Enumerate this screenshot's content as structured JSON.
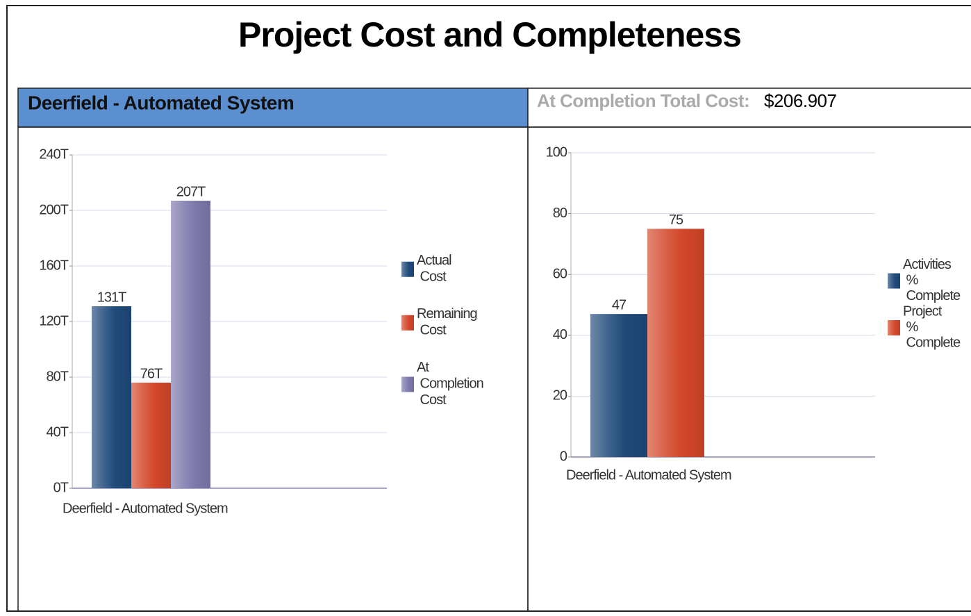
{
  "title": "Project Cost and Completeness",
  "panel_header": "Deerfield - Automated System",
  "total_cost": {
    "label": "At Completion Total Cost:",
    "value": "$206.907"
  },
  "chart_data": [
    {
      "type": "bar",
      "categories": [
        "Deerfield - Automated System"
      ],
      "series": [
        {
          "name": "Actual Cost",
          "color": "#1f4a7a",
          "values": [
            131000
          ],
          "value_labels": [
            "131T"
          ]
        },
        {
          "name": "Remaining Cost",
          "color": "#d4472a",
          "values": [
            76000
          ],
          "value_labels": [
            "76T"
          ]
        },
        {
          "name": "At Completion Cost",
          "color": "#7d79ac",
          "values": [
            207000
          ],
          "value_labels": [
            "207T"
          ]
        }
      ],
      "ylim": [
        0,
        240000
      ],
      "yticks": [
        {
          "value": 0,
          "label": "0T"
        },
        {
          "value": 40000,
          "label": "40T"
        },
        {
          "value": 80000,
          "label": "80T"
        },
        {
          "value": 120000,
          "label": "120T"
        },
        {
          "value": 160000,
          "label": "160T"
        },
        {
          "value": 200000,
          "label": "200T"
        },
        {
          "value": 240000,
          "label": "240T"
        }
      ],
      "grid": true,
      "legend": "right"
    },
    {
      "type": "bar",
      "categories": [
        "Deerfield - Automated System"
      ],
      "series": [
        {
          "name": "Activities % Complete",
          "color": "#1f4a7a",
          "values": [
            47
          ]
        },
        {
          "name": "Project % Complete",
          "color": "#d4472a",
          "values": [
            75
          ]
        }
      ],
      "ylim": [
        0,
        100
      ],
      "yticks": [
        0,
        20,
        40,
        60,
        80,
        100
      ],
      "grid": true,
      "legend": "right"
    }
  ]
}
